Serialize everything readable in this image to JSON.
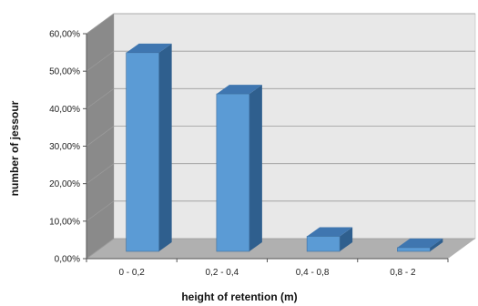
{
  "chart_data": {
    "type": "bar",
    "title": "",
    "xlabel": "height of retention (m)",
    "ylabel": "number of jessour",
    "categories": [
      "0 - 0,2",
      "0,2 - 0,4",
      "0,4 - 0,8",
      "0,8 - 2"
    ],
    "values": [
      53,
      42,
      4,
      1
    ],
    "ylim": [
      0,
      60
    ],
    "y_ticks": [
      "0,00%",
      "10,00%",
      "20,00%",
      "30,00%",
      "40,00%",
      "50,00%",
      "60,00%"
    ],
    "grid": true,
    "legend": "none",
    "style": "3d-column",
    "colors": {
      "bar_front": "#5b9bd5",
      "bar_side": "#2f5f8e",
      "bar_top": "#3f76b0",
      "back_wall": "#e8e8e8",
      "side_wall": "#8a8a8a",
      "floor": "#b0b0b0",
      "grid": "#9a9a9a"
    }
  }
}
